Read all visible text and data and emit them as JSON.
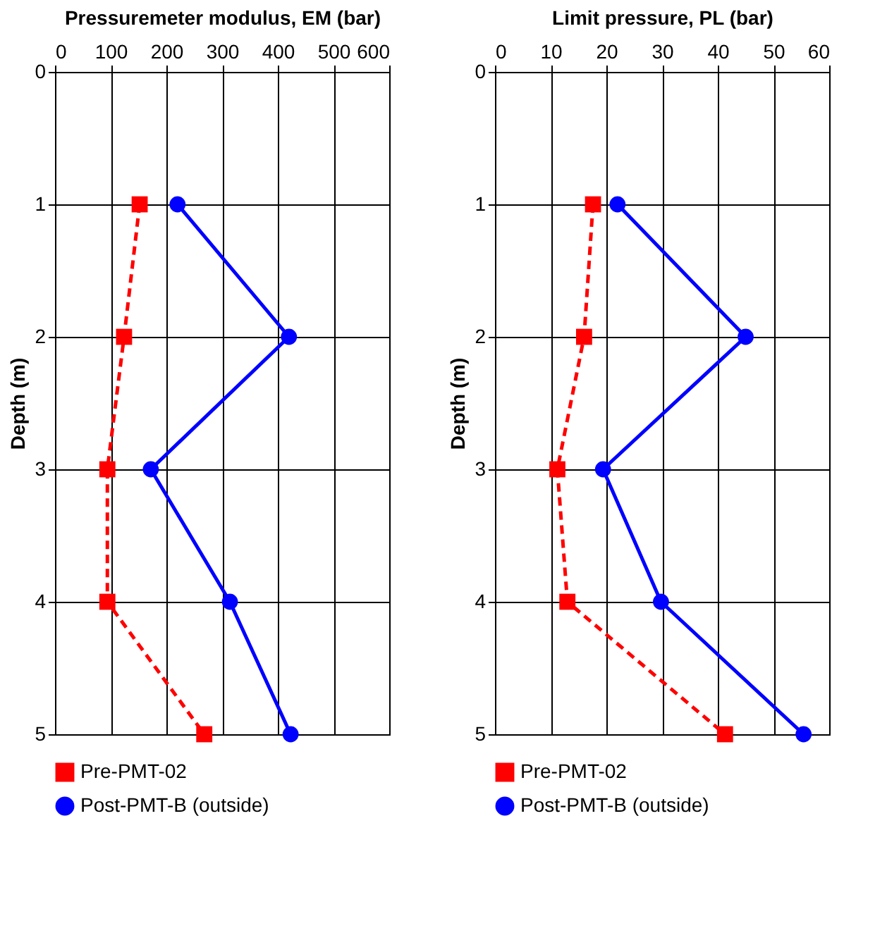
{
  "chart_data": [
    {
      "type": "line",
      "orientation": "horizontal",
      "xlabel": "Pressuremeter modulus, EM (bar)",
      "ylabel": "Depth (m)",
      "x": [
        1,
        2,
        3,
        4,
        5
      ],
      "xlim": [
        0,
        600
      ],
      "xticks": [
        0,
        100,
        200,
        300,
        400,
        500,
        600
      ],
      "ylim": [
        5,
        0
      ],
      "yticks": [
        0,
        1,
        2,
        3,
        4,
        5
      ],
      "grid": true,
      "legend": "bottom",
      "series": [
        {
          "name": "Pre-PMT-02",
          "color": "#ff0000",
          "marker": "square",
          "line_style": "dashed",
          "values": [
            152,
            124,
            94,
            94,
            268
          ]
        },
        {
          "name": "Post-PMT-B (outside)",
          "color": "#0000ff",
          "marker": "circle",
          "line_style": "solid",
          "values": [
            220,
            420,
            172,
            314,
            423
          ]
        }
      ]
    },
    {
      "type": "line",
      "orientation": "horizontal",
      "xlabel": "Limit pressure, PL (bar)",
      "ylabel": "Depth (m)",
      "x": [
        1,
        2,
        3,
        4,
        5
      ],
      "xlim": [
        0,
        60
      ],
      "xticks": [
        0,
        10,
        20,
        30,
        40,
        50,
        60
      ],
      "ylim": [
        5,
        0
      ],
      "yticks": [
        0,
        1,
        2,
        3,
        4,
        5
      ],
      "grid": true,
      "legend": "bottom",
      "series": [
        {
          "name": "Pre-PMT-02",
          "color": "#ff0000",
          "marker": "square",
          "line_style": "dashed",
          "values": [
            17.6,
            16,
            11.2,
            13,
            41.3
          ]
        },
        {
          "name": "Post-PMT-B (outside)",
          "color": "#0000ff",
          "marker": "circle",
          "line_style": "solid",
          "values": [
            22,
            45,
            19.4,
            29.8,
            55.4
          ]
        }
      ]
    }
  ]
}
